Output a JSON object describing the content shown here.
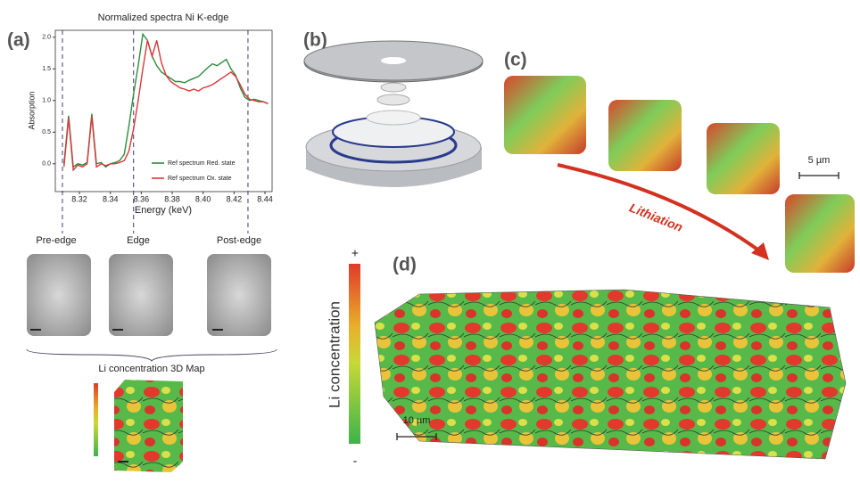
{
  "panels": {
    "a": "(a)",
    "b": "(b)",
    "c": "(c)",
    "d": "(d)"
  },
  "chart_data": {
    "type": "line",
    "title": "Normalized spectra Ni K-edge",
    "x_label": "Energy (keV)",
    "y_label": "Absorption",
    "xlim": [
      8.3044,
      8.4446
    ],
    "ylim": [
      -0.44,
      2.11
    ],
    "xticks": [
      8.32,
      8.34,
      8.36,
      8.38,
      {
        "value": 8.4,
        "label": "8.40"
      },
      8.42,
      8.44
    ],
    "yticks": [
      {
        "value": 0,
        "label": "0.0"
      },
      0.5,
      {
        "value": 1,
        "label": "1.0"
      },
      1.5,
      {
        "value": 2,
        "label": "2.0"
      }
    ],
    "edge_lines": [
      8.309,
      8.355,
      8.429
    ],
    "legend": "lower right",
    "x": [
      8.31,
      8.313,
      8.316,
      8.319,
      8.322,
      8.325,
      8.328,
      8.331,
      8.334,
      8.337,
      8.34,
      8.343,
      8.346,
      8.349,
      8.352,
      8.355,
      8.358,
      8.361,
      8.364,
      8.367,
      8.37,
      8.373,
      8.376,
      8.379,
      8.382,
      8.385,
      8.388,
      8.391,
      8.394,
      8.397,
      8.4,
      8.403,
      8.406,
      8.409,
      8.412,
      8.415,
      8.418,
      8.421,
      8.424,
      8.427,
      8.43,
      8.433,
      8.436,
      8.439,
      8.442
    ],
    "series": [
      {
        "name": "Ref spectrum Red. state",
        "color": "#2e8b3e",
        "values": [
          0.0,
          0.76,
          -0.05,
          0.0,
          -0.02,
          0.02,
          0.79,
          0.0,
          0.02,
          -0.05,
          0.0,
          0.02,
          0.05,
          0.15,
          0.6,
          1.1,
          1.55,
          2.05,
          1.95,
          1.7,
          1.55,
          1.45,
          1.4,
          1.35,
          1.3,
          1.3,
          1.28,
          1.32,
          1.35,
          1.38,
          1.45,
          1.52,
          1.58,
          1.55,
          1.6,
          1.65,
          1.5,
          1.4,
          1.2,
          1.05,
          1.0,
          1.02,
          1.0,
          0.98,
          0.95
        ]
      },
      {
        "name": "Ref spectrum Ox. state",
        "color": "#d8383a",
        "values": [
          -0.05,
          0.72,
          -0.1,
          -0.02,
          -0.05,
          0.0,
          0.75,
          -0.05,
          0.0,
          -0.03,
          0.0,
          0.0,
          0.02,
          0.05,
          0.2,
          0.55,
          1.0,
          1.5,
          1.95,
          1.7,
          1.95,
          1.6,
          1.4,
          1.3,
          1.25,
          1.2,
          1.18,
          1.15,
          1.18,
          1.15,
          1.2,
          1.22,
          1.25,
          1.3,
          1.35,
          1.4,
          1.45,
          1.38,
          1.25,
          1.1,
          1.02,
          1.0,
          0.98,
          0.98,
          0.95
        ]
      }
    ]
  },
  "stages": [
    "Pre-edge",
    "Edge",
    "Post-edge"
  ],
  "map_title": "Li concentration 3D Map",
  "arrow_label": "Lithiation",
  "scale_c": "5 µm",
  "colorbar": {
    "title": "Li concentration",
    "top": "+",
    "bottom": "-"
  },
  "scale_d": "10 µm"
}
